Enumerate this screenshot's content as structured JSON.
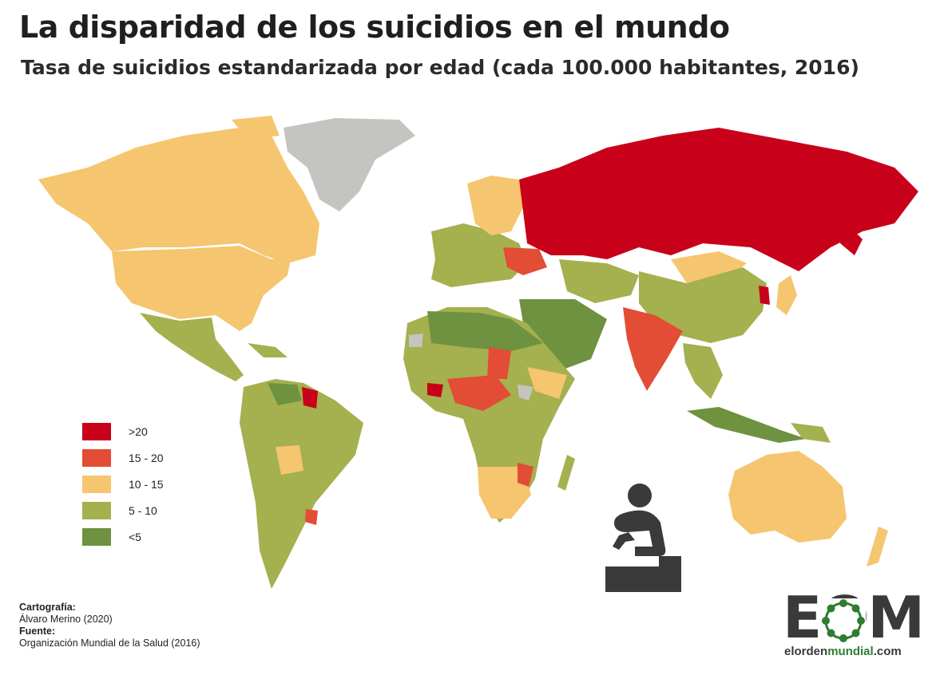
{
  "header": {
    "title": "La disparidad de los suicidios en el mundo",
    "subtitle": "Tasa de suicidios estandarizada por edad (cada 100.000 habitantes, 2016)"
  },
  "legend": {
    "items": [
      {
        "label": ">20",
        "color": "#c8001a"
      },
      {
        "label": "15 - 20",
        "color": "#e34c35"
      },
      {
        "label": "10 - 15",
        "color": "#f5c56f"
      },
      {
        "label": "5 - 10",
        "color": "#a5b04f"
      },
      {
        "label": "<5",
        "color": "#6e9240"
      }
    ],
    "no_data_color": "#c4c4c0"
  },
  "credits": {
    "cartography_label": "Cartografía:",
    "cartography_value": "Álvaro Merino (2020)",
    "source_label": "Fuente:",
    "source_value": "Organización Mundial de la Salud (2016)"
  },
  "logo": {
    "letters": "EOM",
    "url_prefix": "elorden",
    "url_bold": "mundial",
    "url_suffix": ".com"
  },
  "icons": {
    "person": "seated-person-icon"
  }
}
